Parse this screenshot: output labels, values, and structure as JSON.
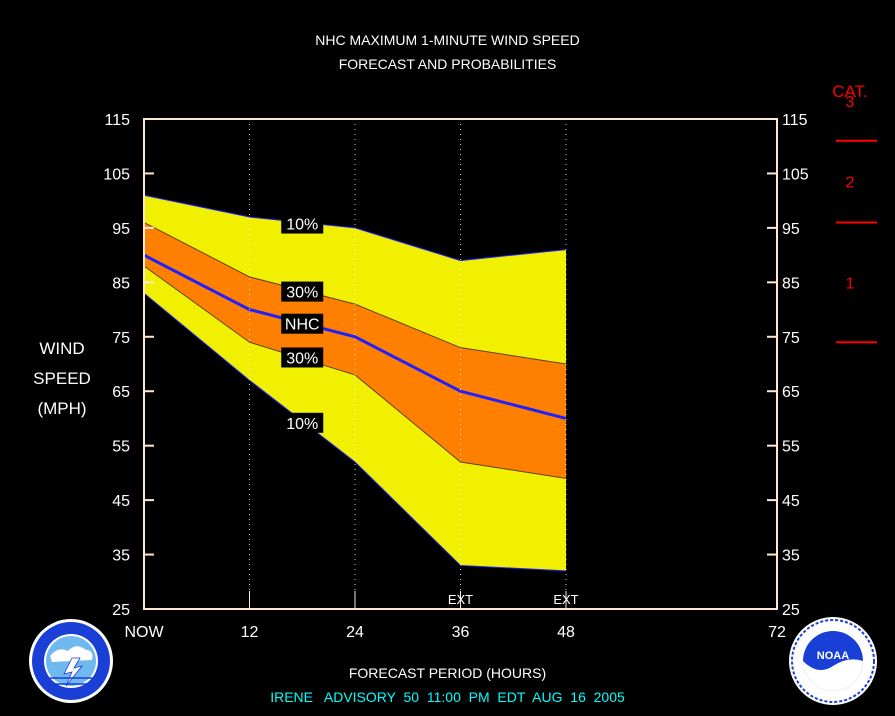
{
  "header": {
    "title_line1": "NHC MAXIMUM 1-MINUTE WIND SPEED",
    "title_line2": "FORECAST AND PROBABILITIES"
  },
  "y_axis_label": [
    "WIND",
    "SPEED",
    "(MPH)"
  ],
  "x_axis_title": "FORECAST PERIOD (HOURS)",
  "footer": "IRENE   ADVISORY  50  11:00  PM  EDT  AUG  16  2005",
  "colors": {
    "background": "#000000",
    "outer_band": "#f0f000",
    "inner_band": "#ff8000",
    "nhc_line": "#2020ff",
    "axis_frame": "#ffe8d0",
    "category": "#ff0000",
    "footer": "#00ffff"
  },
  "category_scale": {
    "title": "CAT.",
    "labels": [
      "3",
      "2",
      "1"
    ],
    "thresholds_mph": [
      111,
      96,
      74
    ]
  },
  "logos": {
    "left": "nws-logo",
    "right": "noaa-logo",
    "right_text": "NOAA"
  },
  "chart_data": {
    "type": "area",
    "title": "NHC MAXIMUM 1-MINUTE WIND SPEED FORECAST AND PROBABILITIES",
    "xlabel": "FORECAST PERIOD (HOURS)",
    "ylabel": "WIND SPEED (MPH)",
    "xlim": [
      0,
      72
    ],
    "ylim": [
      25,
      115
    ],
    "x_ticks": [
      0,
      12,
      24,
      36,
      48,
      72
    ],
    "x_tick_labels": [
      "NOW",
      "12",
      "24",
      "36",
      "48",
      "72"
    ],
    "y_ticks": [
      25,
      35,
      45,
      55,
      65,
      75,
      85,
      95,
      105,
      115
    ],
    "y_tick_labels": [
      "25",
      "35",
      "45",
      "55",
      "65",
      "75",
      "85",
      "95",
      "105",
      "115"
    ],
    "vertical_gridlines_x": [
      12,
      24,
      36,
      48
    ],
    "ext_labels": [
      {
        "x": 36,
        "text": "EXT"
      },
      {
        "x": 48,
        "text": "EXT"
      }
    ],
    "x": [
      0,
      12,
      24,
      36,
      48
    ],
    "series": [
      {
        "name": "10%",
        "values": [
          101,
          97,
          95,
          89,
          91
        ]
      },
      {
        "name": "30%",
        "values": [
          96,
          86,
          81,
          73,
          70
        ]
      },
      {
        "name": "NHC",
        "values": [
          90,
          80,
          75,
          65,
          60
        ]
      },
      {
        "name": "30%",
        "values": [
          88,
          74,
          68,
          52,
          49
        ]
      },
      {
        "name": "10%",
        "values": [
          83,
          67,
          52,
          33,
          32
        ]
      }
    ],
    "band_labels": [
      {
        "text": "10%",
        "x": 18,
        "y": 95.8
      },
      {
        "text": "30%",
        "x": 18,
        "y": 83.3
      },
      {
        "text": "NHC",
        "x": 18,
        "y": 77.4
      },
      {
        "text": "30%",
        "x": 18,
        "y": 71.2
      },
      {
        "text": "10%",
        "x": 18,
        "y": 59.2
      }
    ]
  }
}
